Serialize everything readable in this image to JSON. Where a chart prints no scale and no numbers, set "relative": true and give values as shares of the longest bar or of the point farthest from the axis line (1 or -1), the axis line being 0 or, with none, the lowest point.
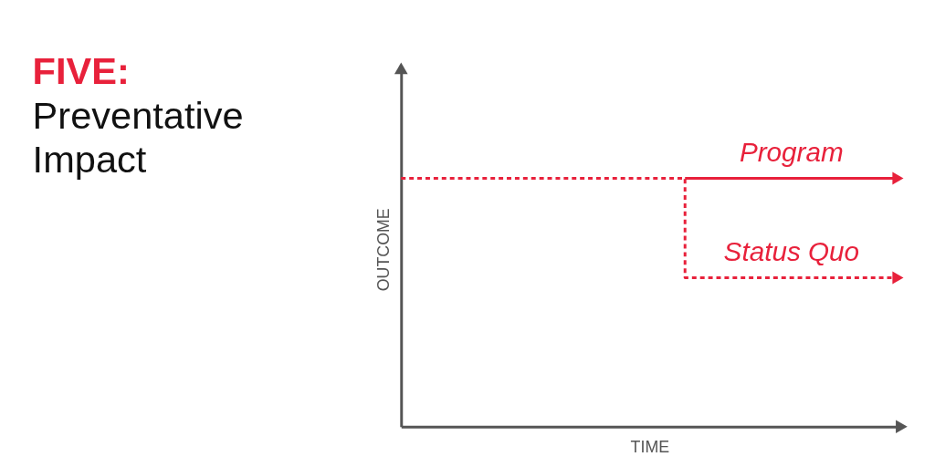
{
  "chart_data": {
    "type": "line",
    "title": "FIVE:",
    "subtitle": "Preventative Impact",
    "xlabel": "TIME",
    "ylabel": "OUTCOME",
    "relative": true,
    "categories": [
      null,
      null,
      null,
      null,
      null,
      null,
      null,
      null
    ],
    "grid": false,
    "legend": false,
    "tick_labels": false,
    "series": [
      {
        "name": "Program",
        "color": "#e8213b",
        "type": "line",
        "line_style": "solid",
        "values": [
          null,
          null,
          null,
          null,
          1,
          1,
          1,
          1
        ]
      },
      {
        "name": "Status Quo",
        "color": "#e8213b",
        "type": "step",
        "line_style": "dashed",
        "values": [
          1,
          1,
          1,
          1,
          1,
          0.6,
          0.6,
          0.6
        ]
      }
    ]
  }
}
